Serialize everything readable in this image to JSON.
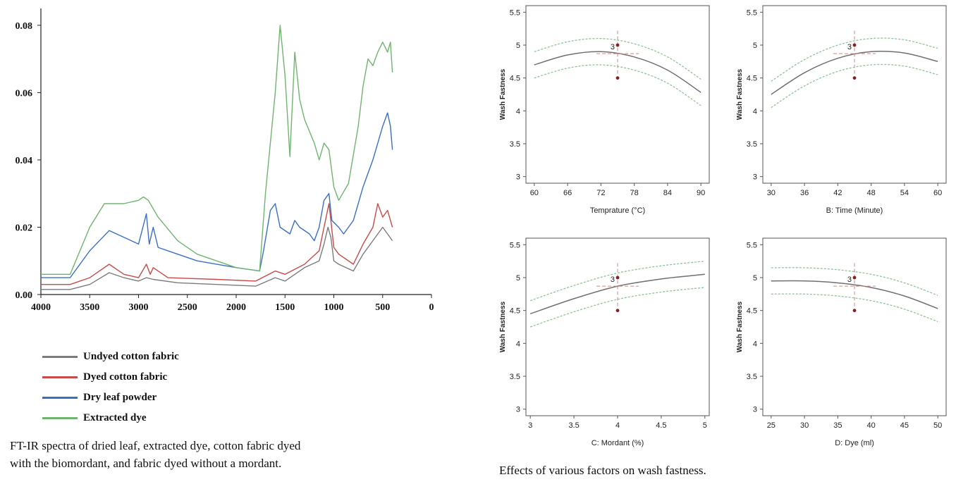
{
  "chart_data": [
    {
      "type": "line",
      "title": "",
      "xlabel": "",
      "ylabel": "",
      "xlim": [
        4000,
        0
      ],
      "ylim": [
        0,
        0.085
      ],
      "x_ticks": [
        "4000",
        "3500",
        "3000",
        "2500",
        "2000",
        "1500",
        "1000",
        "500",
        "0"
      ],
      "y_ticks": [
        "0.00",
        "0.02",
        "0.04",
        "0.06",
        "0.08"
      ],
      "legend_position": "below",
      "series": [
        {
          "name": "Undyed cotton fabric",
          "color": "#7b7b7b",
          "points": [
            [
              4000,
              0.0015
            ],
            [
              3700,
              0.0015
            ],
            [
              3500,
              0.003
            ],
            [
              3300,
              0.0065
            ],
            [
              3150,
              0.005
            ],
            [
              3000,
              0.004
            ],
            [
              2920,
              0.005
            ],
            [
              2850,
              0.0045
            ],
            [
              2600,
              0.0035
            ],
            [
              2200,
              0.003
            ],
            [
              1800,
              0.0025
            ],
            [
              1600,
              0.005
            ],
            [
              1500,
              0.004
            ],
            [
              1300,
              0.008
            ],
            [
              1150,
              0.01
            ],
            [
              1100,
              0.015
            ],
            [
              1060,
              0.02
            ],
            [
              1030,
              0.017
            ],
            [
              1000,
              0.01
            ],
            [
              950,
              0.009
            ],
            [
              800,
              0.007
            ],
            [
              700,
              0.012
            ],
            [
              600,
              0.016
            ],
            [
              500,
              0.02
            ],
            [
              450,
              0.018
            ],
            [
              400,
              0.016
            ]
          ]
        },
        {
          "name": "Dyed cotton fabric",
          "color": "#c84a4a",
          "points": [
            [
              4000,
              0.003
            ],
            [
              3700,
              0.003
            ],
            [
              3500,
              0.005
            ],
            [
              3300,
              0.009
            ],
            [
              3150,
              0.006
            ],
            [
              3000,
              0.005
            ],
            [
              2920,
              0.009
            ],
            [
              2880,
              0.006
            ],
            [
              2850,
              0.008
            ],
            [
              2700,
              0.005
            ],
            [
              2200,
              0.0045
            ],
            [
              1800,
              0.004
            ],
            [
              1600,
              0.007
            ],
            [
              1500,
              0.006
            ],
            [
              1300,
              0.009
            ],
            [
              1150,
              0.013
            ],
            [
              1100,
              0.02
            ],
            [
              1050,
              0.027
            ],
            [
              1030,
              0.022
            ],
            [
              1000,
              0.014
            ],
            [
              950,
              0.012
            ],
            [
              800,
              0.009
            ],
            [
              700,
              0.015
            ],
            [
              600,
              0.02
            ],
            [
              550,
              0.027
            ],
            [
              500,
              0.023
            ],
            [
              450,
              0.025
            ],
            [
              400,
              0.02
            ]
          ]
        },
        {
          "name": "Dry leaf powder",
          "color": "#3a6fc4",
          "points": [
            [
              4000,
              0.005
            ],
            [
              3700,
              0.005
            ],
            [
              3500,
              0.013
            ],
            [
              3300,
              0.019
            ],
            [
              3150,
              0.017
            ],
            [
              3000,
              0.015
            ],
            [
              2920,
              0.024
            ],
            [
              2890,
              0.015
            ],
            [
              2850,
              0.02
            ],
            [
              2800,
              0.014
            ],
            [
              2600,
              0.012
            ],
            [
              2400,
              0.01
            ],
            [
              2000,
              0.008
            ],
            [
              1760,
              0.007
            ],
            [
              1720,
              0.013
            ],
            [
              1650,
              0.025
            ],
            [
              1600,
              0.027
            ],
            [
              1550,
              0.02
            ],
            [
              1450,
              0.018
            ],
            [
              1400,
              0.022
            ],
            [
              1350,
              0.02
            ],
            [
              1250,
              0.018
            ],
            [
              1200,
              0.016
            ],
            [
              1150,
              0.02
            ],
            [
              1100,
              0.028
            ],
            [
              1050,
              0.03
            ],
            [
              1020,
              0.022
            ],
            [
              950,
              0.02
            ],
            [
              900,
              0.018
            ],
            [
              800,
              0.022
            ],
            [
              700,
              0.032
            ],
            [
              600,
              0.04
            ],
            [
              500,
              0.05
            ],
            [
              450,
              0.054
            ],
            [
              420,
              0.05
            ],
            [
              400,
              0.043
            ]
          ]
        },
        {
          "name": "Extracted dye",
          "color": "#6fb56f",
          "points": [
            [
              4000,
              0.006
            ],
            [
              3700,
              0.006
            ],
            [
              3500,
              0.02
            ],
            [
              3350,
              0.027
            ],
            [
              3150,
              0.027
            ],
            [
              3000,
              0.028
            ],
            [
              2950,
              0.029
            ],
            [
              2900,
              0.028
            ],
            [
              2800,
              0.023
            ],
            [
              2600,
              0.016
            ],
            [
              2400,
              0.012
            ],
            [
              2000,
              0.008
            ],
            [
              1760,
              0.007
            ],
            [
              1700,
              0.03
            ],
            [
              1600,
              0.06
            ],
            [
              1550,
              0.08
            ],
            [
              1500,
              0.065
            ],
            [
              1450,
              0.041
            ],
            [
              1400,
              0.072
            ],
            [
              1350,
              0.058
            ],
            [
              1300,
              0.052
            ],
            [
              1200,
              0.045
            ],
            [
              1150,
              0.04
            ],
            [
              1100,
              0.045
            ],
            [
              1050,
              0.043
            ],
            [
              1000,
              0.032
            ],
            [
              950,
              0.028
            ],
            [
              850,
              0.033
            ],
            [
              750,
              0.05
            ],
            [
              700,
              0.062
            ],
            [
              650,
              0.07
            ],
            [
              600,
              0.068
            ],
            [
              550,
              0.072
            ],
            [
              500,
              0.075
            ],
            [
              450,
              0.072
            ],
            [
              420,
              0.075
            ],
            [
              400,
              0.066
            ]
          ]
        }
      ]
    },
    {
      "type": "line",
      "title": "",
      "xlabel": "Temprature (°C)",
      "ylabel": "Wash Fastness",
      "xlim": [
        58.5,
        91.5
      ],
      "ylim": [
        2.9,
        5.6
      ],
      "x_ticks": [
        60,
        66,
        72,
        78,
        84,
        90
      ],
      "x_tick_labels": [
        "60",
        "66",
        "72",
        "78",
        "84",
        "90"
      ],
      "y_ticks": [
        3,
        3.5,
        4,
        4.5,
        5,
        5.5
      ],
      "y_tick_labels": [
        "3",
        "3.5",
        "4",
        "4.5",
        "5",
        "5.5"
      ],
      "x": [
        60,
        66,
        72,
        78,
        84,
        90
      ],
      "series": [
        {
          "name": "fit",
          "values": [
            4.7,
            4.85,
            4.9,
            4.82,
            4.62,
            4.28
          ]
        },
        {
          "name": "upper",
          "values": [
            4.9,
            5.05,
            5.1,
            5.02,
            4.82,
            4.48
          ]
        },
        {
          "name": "lower",
          "values": [
            4.5,
            4.65,
            4.7,
            4.62,
            4.42,
            4.08
          ]
        }
      ],
      "center": {
        "x": 75,
        "y": 4.87,
        "label": "3"
      },
      "design_points": [
        {
          "x": 75,
          "y": 5.0
        },
        {
          "x": 75,
          "y": 4.5
        }
      ]
    },
    {
      "type": "line",
      "title": "",
      "xlabel": "B: Time (Minute)",
      "ylabel": "Wash Fastness",
      "xlim": [
        28.5,
        61.5
      ],
      "ylim": [
        2.9,
        5.6
      ],
      "x_ticks": [
        30,
        36,
        42,
        48,
        54,
        60
      ],
      "x_tick_labels": [
        "30",
        "36",
        "42",
        "48",
        "54",
        "60"
      ],
      "y_ticks": [
        3,
        3.5,
        4,
        4.5,
        5,
        5.5
      ],
      "y_tick_labels": [
        "3",
        "3.5",
        "4",
        "4.5",
        "5",
        "5.5"
      ],
      "x": [
        30,
        36,
        42,
        48,
        54,
        60
      ],
      "series": [
        {
          "name": "fit",
          "values": [
            4.25,
            4.58,
            4.8,
            4.9,
            4.88,
            4.75
          ]
        },
        {
          "name": "upper",
          "values": [
            4.45,
            4.78,
            5.0,
            5.1,
            5.08,
            4.95
          ]
        },
        {
          "name": "lower",
          "values": [
            4.05,
            4.38,
            4.6,
            4.7,
            4.68,
            4.55
          ]
        }
      ],
      "center": {
        "x": 45,
        "y": 4.87,
        "label": "3"
      },
      "design_points": [
        {
          "x": 45,
          "y": 5.0
        },
        {
          "x": 45,
          "y": 4.5
        }
      ]
    },
    {
      "type": "line",
      "title": "",
      "xlabel": "C: Mordant (%)",
      "ylabel": "Wash Fastness",
      "xlim": [
        2.95,
        5.05
      ],
      "ylim": [
        2.9,
        5.6
      ],
      "x_ticks": [
        3,
        3.5,
        4,
        4.5,
        5
      ],
      "x_tick_labels": [
        "3",
        "3.5",
        "4",
        "4.5",
        "5"
      ],
      "y_ticks": [
        3,
        3.5,
        4,
        4.5,
        5,
        5.5
      ],
      "y_tick_labels": [
        "3",
        "3.5",
        "4",
        "4.5",
        "5",
        "5.5"
      ],
      "x": [
        3,
        3.5,
        4,
        4.5,
        5
      ],
      "series": [
        {
          "name": "fit",
          "values": [
            4.45,
            4.68,
            4.87,
            4.98,
            5.05
          ]
        },
        {
          "name": "upper",
          "values": [
            4.65,
            4.88,
            5.07,
            5.18,
            5.25
          ]
        },
        {
          "name": "lower",
          "values": [
            4.25,
            4.48,
            4.67,
            4.78,
            4.85
          ]
        }
      ],
      "center": {
        "x": 4,
        "y": 4.87,
        "label": "3"
      },
      "design_points": [
        {
          "x": 4,
          "y": 5.0
        },
        {
          "x": 4,
          "y": 4.5
        }
      ]
    },
    {
      "type": "line",
      "title": "",
      "xlabel": "D: Dye (ml)",
      "ylabel": "Wash Fastness",
      "xlim": [
        23.75,
        51.25
      ],
      "ylim": [
        2.9,
        5.6
      ],
      "x_ticks": [
        25,
        30,
        35,
        40,
        45,
        50
      ],
      "x_tick_labels": [
        "25",
        "30",
        "35",
        "40",
        "45",
        "50"
      ],
      "y_ticks": [
        3,
        3.5,
        4,
        4.5,
        5,
        5.5
      ],
      "y_tick_labels": [
        "3",
        "3.5",
        "4",
        "4.5",
        "5",
        "5.5"
      ],
      "x": [
        25,
        30,
        35,
        40,
        45,
        50
      ],
      "series": [
        {
          "name": "fit",
          "values": [
            4.95,
            4.95,
            4.92,
            4.85,
            4.72,
            4.53
          ]
        },
        {
          "name": "upper",
          "values": [
            5.15,
            5.15,
            5.12,
            5.05,
            4.92,
            4.73
          ]
        },
        {
          "name": "lower",
          "values": [
            4.75,
            4.75,
            4.72,
            4.65,
            4.52,
            4.33
          ]
        }
      ],
      "center": {
        "x": 37.5,
        "y": 4.87,
        "label": "3"
      },
      "design_points": [
        {
          "x": 37.5,
          "y": 5.0
        },
        {
          "x": 37.5,
          "y": 4.5
        }
      ]
    }
  ],
  "legend": {
    "items": [
      {
        "label": "Undyed cotton fabric",
        "color": "#7b7b7b"
      },
      {
        "label": "Dyed cotton fabric",
        "color": "#c84a4a"
      },
      {
        "label": "Dry leaf powder",
        "color": "#3a6fc4"
      },
      {
        "label": "Extracted dye",
        "color": "#6fb56f"
      }
    ]
  },
  "captions": {
    "left_line1": "FT-IR spectra of dried leaf, extracted dye, cotton fabric dyed",
    "left_line2": "with the biomordant, and fabric dyed without a mordant.",
    "right": "Effects of various factors on wash fastness."
  },
  "colors": {
    "fit": "#707070",
    "band": "#8fc49a",
    "center": "#c98a8a",
    "design_point": "#8b1f1f"
  }
}
